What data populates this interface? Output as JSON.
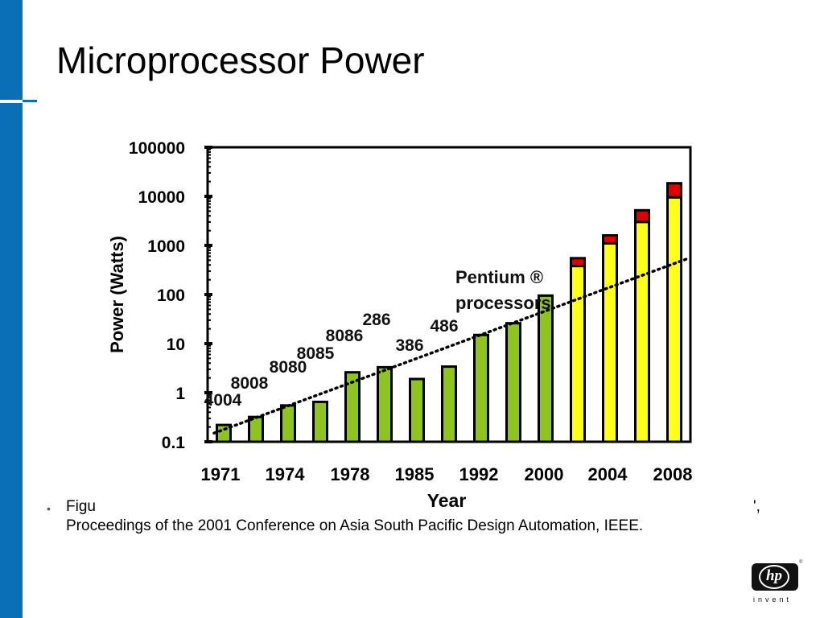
{
  "slide": {
    "title": "Microprocessor Power",
    "caption_line1": "Figu",
    "caption_line1_tail": "',",
    "caption_line2": "Proceedings of the 2001 Conference on Asia South Pacific Design Automation, IEEE.",
    "bullet_glyph": "•"
  },
  "logo": {
    "mark": "hp",
    "tagline": "invent",
    "registered": "®"
  },
  "colors": {
    "left_bar": "#0a6fb5",
    "green_bar": "#8fc31f",
    "yellow_bar": "#ffff1a",
    "red_cap": "#e00000",
    "frame": "#000000"
  },
  "chart_data": {
    "type": "bar",
    "xlabel": "Year",
    "ylabel": "Power (Watts)",
    "y_scale": "log",
    "ylim": [
      0.1,
      100000
    ],
    "y_ticks": [
      "0.1",
      "1",
      "10",
      "100",
      "1000",
      "10000",
      "100000"
    ],
    "x_tick_labels": [
      "1971",
      "1974",
      "1978",
      "1985",
      "1992",
      "2000",
      "2004",
      "2008"
    ],
    "series": [
      {
        "values": [
          0.22,
          0.32,
          0.55,
          0.65,
          2.6,
          3.3,
          1.9,
          3.4,
          15,
          26,
          95,
          380,
          1100,
          3000,
          9500
        ],
        "colors": [
          "green",
          "green",
          "green",
          "green",
          "green",
          "green",
          "green",
          "green",
          "green",
          "green",
          "green",
          "yellow",
          "yellow",
          "yellow",
          "yellow"
        ],
        "cap_tops": [
          null,
          null,
          null,
          null,
          null,
          null,
          null,
          null,
          null,
          null,
          null,
          550,
          1600,
          5200,
          18500
        ]
      }
    ],
    "bar_labels": [
      {
        "text": "4004",
        "bar": 0
      },
      {
        "text": "8008",
        "bar": 1
      },
      {
        "text": "8080",
        "bar": 2
      },
      {
        "text": "8085",
        "bar": 3
      },
      {
        "text": "8086",
        "bar": 4
      },
      {
        "text": "286",
        "bar": 5
      },
      {
        "text": "386",
        "bar": 6
      },
      {
        "text": "486",
        "bar": 7
      }
    ],
    "annotation": "Pentium ® processors",
    "annotation_line1": "Pentium ®",
    "annotation_line2": "processors",
    "trend_line": {
      "style": "dotted",
      "from": 0.15,
      "to": 550
    }
  }
}
